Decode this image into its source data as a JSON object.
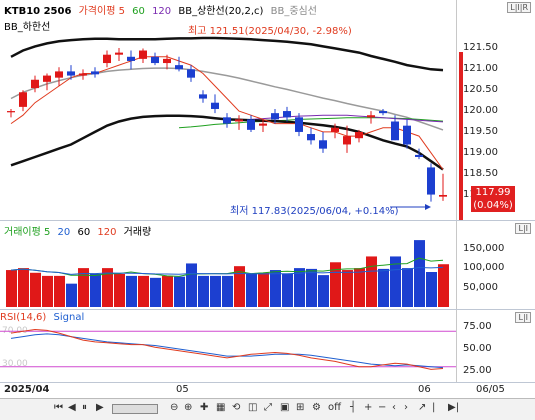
{
  "price_panel": {
    "legend": [
      {
        "label": "KTB10 2506",
        "color": "#000000"
      },
      {
        "label": "가격이평 5",
        "color": "#e03b1f"
      },
      {
        "label": "60",
        "color": "#1fa01f"
      },
      {
        "label": "120",
        "color": "#7a2bb0"
      },
      {
        "label": "BB_상한선(20,2,c)",
        "color": "#000000"
      },
      {
        "label": "BB_중심선",
        "color": "#888888"
      }
    ],
    "legend2": "BB_하한선",
    "axis_badge": "L|I|R",
    "y_ticks": [
      "121.50",
      "121.00",
      "120.50",
      "120.00",
      "119.50",
      "119.00",
      "118.50",
      "118.00"
    ],
    "last_price": "117.99",
    "last_change": "(0.04%)",
    "high_note": "최고 121.51(2025/04/30, -2.98%)",
    "low_note": "최저 117.83(2025/06/04, +0.14%)"
  },
  "volume_panel": {
    "legend": [
      {
        "label": "거래이평 5",
        "color": "#1fa01f"
      },
      {
        "label": "20",
        "color": "#1f5fd0"
      },
      {
        "label": "60",
        "color": "#000000"
      },
      {
        "label": "120",
        "color": "#e03b1f"
      },
      {
        "label": "거래량",
        "color": "#000000"
      }
    ],
    "axis_badge": "L|I",
    "y_ticks": [
      "150,000",
      "100,000",
      "50,000"
    ]
  },
  "rsi_panel": {
    "legend": [
      {
        "label": "RSI(14,6)",
        "color": "#e03b1f"
      },
      {
        "label": "Signal",
        "color": "#1f5fd0"
      }
    ],
    "axis_badge": "L|I",
    "y_ticks": [
      "75.00",
      "50.00",
      "25.00"
    ],
    "level_high": "70.00",
    "level_low": "30.00"
  },
  "x_axis": {
    "labels": [
      "2025/04",
      "05",
      "06",
      "06/05"
    ]
  },
  "toolbar": {
    "zoom_label": "off"
  },
  "chart_data": {
    "type": "candlestick",
    "candles": [
      [
        119.97,
        120.05,
        119.85,
        120.0
      ],
      [
        120.1,
        120.5,
        120.0,
        120.45
      ],
      [
        120.55,
        120.85,
        120.45,
        120.75
      ],
      [
        120.7,
        120.9,
        120.5,
        120.85
      ],
      [
        120.8,
        121.05,
        120.6,
        120.95
      ],
      [
        120.95,
        121.1,
        120.75,
        120.85
      ],
      [
        120.85,
        121.0,
        120.75,
        120.9
      ],
      [
        120.95,
        121.05,
        120.8,
        120.88
      ],
      [
        121.15,
        121.45,
        121.05,
        121.35
      ],
      [
        121.35,
        121.51,
        121.2,
        121.4
      ],
      [
        121.3,
        121.45,
        121.0,
        121.2
      ],
      [
        121.25,
        121.5,
        121.15,
        121.45
      ],
      [
        121.3,
        121.4,
        121.1,
        121.15
      ],
      [
        121.15,
        121.35,
        121.0,
        121.25
      ],
      [
        121.1,
        121.3,
        120.95,
        121.0
      ],
      [
        121.0,
        121.1,
        120.7,
        120.8
      ],
      [
        120.4,
        120.5,
        120.2,
        120.3
      ],
      [
        120.2,
        120.4,
        119.95,
        120.05
      ],
      [
        119.85,
        119.95,
        119.6,
        119.7
      ],
      [
        119.75,
        119.9,
        119.55,
        119.8
      ],
      [
        119.8,
        119.9,
        119.5,
        119.55
      ],
      [
        119.65,
        119.8,
        119.5,
        119.7
      ],
      [
        119.95,
        120.05,
        119.7,
        119.8
      ],
      [
        120.0,
        120.1,
        119.75,
        119.85
      ],
      [
        119.85,
        119.95,
        119.4,
        119.5
      ],
      [
        119.45,
        119.6,
        119.2,
        119.3
      ],
      [
        119.3,
        119.5,
        119.0,
        119.1
      ],
      [
        119.5,
        119.7,
        119.35,
        119.6
      ],
      [
        119.2,
        119.65,
        119.0,
        119.4
      ],
      [
        119.35,
        119.55,
        119.25,
        119.5
      ],
      [
        119.85,
        120.0,
        119.7,
        119.9
      ],
      [
        120.0,
        120.05,
        119.9,
        119.95
      ],
      [
        119.75,
        119.9,
        119.3,
        119.3
      ],
      [
        119.65,
        119.8,
        119.1,
        119.2
      ],
      [
        118.95,
        119.1,
        118.85,
        118.9
      ],
      [
        118.65,
        118.75,
        117.83,
        118.0
      ],
      [
        117.95,
        118.5,
        117.85,
        117.99
      ]
    ],
    "ma5": [
      119.7,
      119.9,
      120.2,
      120.4,
      120.6,
      120.8,
      120.9,
      120.9,
      121.0,
      121.1,
      121.2,
      121.3,
      121.3,
      121.3,
      121.2,
      121.1,
      120.9,
      120.6,
      120.3,
      120.0,
      119.9,
      119.8,
      119.7,
      119.7,
      119.7,
      119.6,
      119.5,
      119.5,
      119.4,
      119.4,
      119.5,
      119.6,
      119.6,
      119.5,
      119.4,
      119.0,
      118.6
    ],
    "ma60": [
      null,
      null,
      null,
      null,
      null,
      null,
      null,
      null,
      null,
      null,
      null,
      null,
      null,
      null,
      119.6,
      119.62,
      119.65,
      119.68,
      119.7,
      119.72,
      119.74,
      119.75,
      119.77,
      119.78,
      119.8,
      119.81,
      119.82,
      119.83,
      119.84,
      119.84,
      119.84,
      119.84,
      119.83,
      119.82,
      119.8,
      119.78,
      119.76
    ],
    "ma120": [
      null,
      null,
      null,
      null,
      null,
      null,
      null,
      null,
      null,
      null,
      null,
      null,
      null,
      null,
      null,
      null,
      null,
      null,
      null,
      null,
      119.8,
      119.82,
      119.84,
      119.86,
      119.88,
      119.89,
      119.9,
      119.9,
      119.9,
      119.88,
      119.86,
      119.84,
      119.82,
      119.8,
      119.78,
      119.76,
      119.74
    ],
    "bb_upper": [
      121.3,
      121.45,
      121.55,
      121.62,
      121.67,
      121.7,
      121.72,
      121.73,
      121.73,
      121.72,
      121.72,
      121.72,
      121.72,
      121.73,
      121.74,
      121.74,
      121.75,
      121.75,
      121.74,
      121.73,
      121.72,
      121.7,
      121.68,
      121.66,
      121.63,
      121.6,
      121.55,
      121.5,
      121.45,
      121.4,
      121.32,
      121.25,
      121.18,
      121.1,
      121.05,
      121.0,
      120.98
    ],
    "bb_mid": [
      120.3,
      120.45,
      120.55,
      120.65,
      120.73,
      120.8,
      120.86,
      120.9,
      120.95,
      120.98,
      121.0,
      121.02,
      121.03,
      121.03,
      121.02,
      120.99,
      120.95,
      120.9,
      120.85,
      120.79,
      120.72,
      120.65,
      120.58,
      120.52,
      120.45,
      120.38,
      120.31,
      120.25,
      120.18,
      120.12,
      120.06,
      120.0,
      119.92,
      119.85,
      119.75,
      119.65,
      119.55
    ],
    "bb_lower": [
      118.7,
      118.8,
      118.9,
      119.0,
      119.1,
      119.2,
      119.35,
      119.5,
      119.65,
      119.75,
      119.82,
      119.86,
      119.88,
      119.89,
      119.89,
      119.88,
      119.86,
      119.83,
      119.8,
      119.79,
      119.78,
      119.77,
      119.76,
      119.74,
      119.72,
      119.69,
      119.66,
      119.62,
      119.57,
      119.5,
      119.4,
      119.3,
      119.22,
      119.15,
      119.0,
      118.8,
      118.6
    ],
    "volume": [
      95000,
      100000,
      88000,
      80000,
      80000,
      60000,
      100000,
      85000,
      100000,
      85000,
      80000,
      80000,
      75000,
      80000,
      78000,
      112000,
      80000,
      80000,
      80000,
      105000,
      85000,
      88000,
      95000,
      86000,
      100000,
      98000,
      82000,
      115000,
      95000,
      100000,
      130000,
      98000,
      130000,
      100000,
      172000,
      90000,
      110000
    ],
    "volume_ylim": [
      0,
      180000
    ],
    "rsi": [
      68,
      70,
      72,
      71,
      68,
      64,
      60,
      58,
      57,
      56,
      55,
      55,
      52,
      50,
      48,
      46,
      44,
      42,
      40,
      42,
      44,
      45,
      46,
      45,
      43,
      40,
      38,
      36,
      33,
      30,
      30,
      32,
      34,
      33,
      30,
      27,
      28
    ],
    "signal": [
      62,
      64,
      66,
      67,
      66,
      64,
      62,
      60,
      58,
      57,
      56,
      55,
      54,
      52,
      50,
      48,
      46,
      44,
      42,
      42,
      42,
      43,
      44,
      44,
      44,
      43,
      41,
      39,
      37,
      35,
      33,
      32,
      31,
      32,
      31,
      30,
      29
    ],
    "rsi_ylim": [
      15,
      85
    ]
  }
}
